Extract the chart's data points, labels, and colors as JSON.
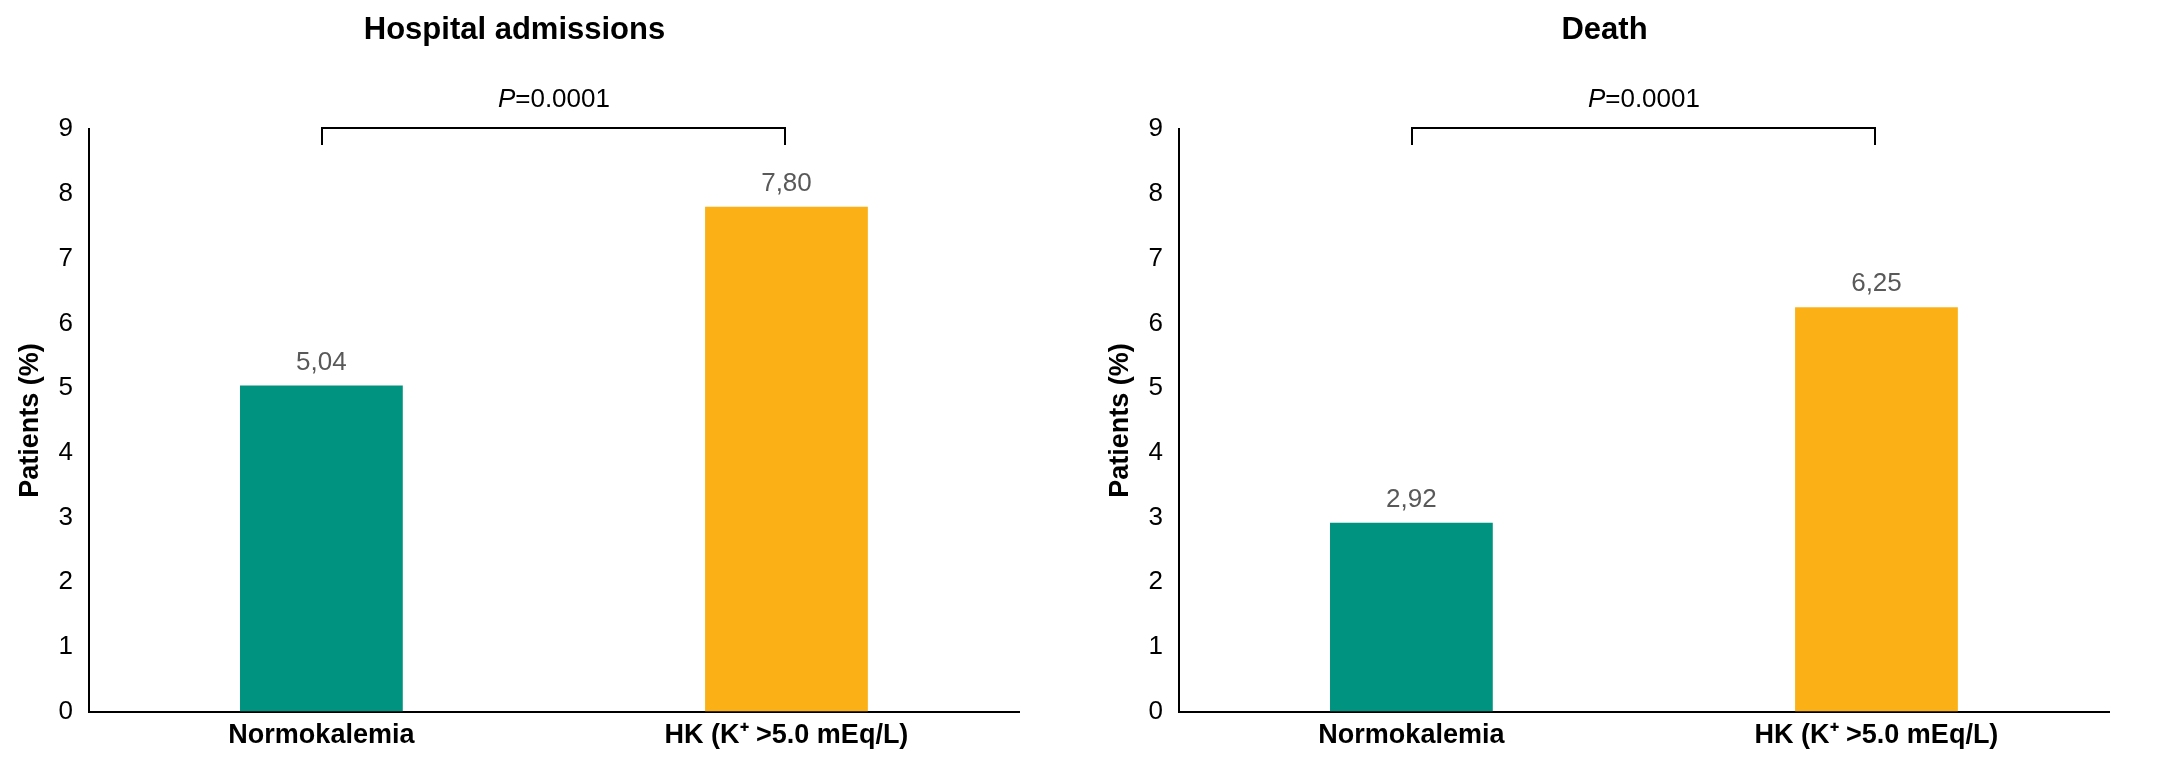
{
  "chart_data": [
    {
      "type": "bar",
      "title": "Hospital admissions",
      "ylabel": "Patients (%)",
      "categories": [
        "Normokalemia",
        "HK (K⁺ >5.0 mEq/L)"
      ],
      "values": [
        5.04,
        7.8
      ],
      "colors": [
        "#009480",
        "#fbb116"
      ],
      "value_labels": [
        "5,04",
        "7,80"
      ],
      "ylim": [
        0,
        9
      ],
      "yticks": [
        0,
        1,
        2,
        3,
        4,
        5,
        6,
        7,
        8,
        9
      ],
      "grid": false,
      "legend": false,
      "annotations": [
        "P=0.0001"
      ]
    },
    {
      "type": "bar",
      "title": "Death",
      "ylabel": "Patients (%)",
      "categories": [
        "Normokalemia",
        "HK (K⁺ >5.0 mEq/L)"
      ],
      "values": [
        2.92,
        6.25
      ],
      "colors": [
        "#009480",
        "#fbb116"
      ],
      "value_labels": [
        "2,92",
        "6,25"
      ],
      "ylim": [
        0,
        9
      ],
      "yticks": [
        0,
        1,
        2,
        3,
        4,
        5,
        6,
        7,
        8,
        9
      ],
      "grid": false,
      "legend": false,
      "annotations": [
        "P=0.0001"
      ]
    }
  ]
}
